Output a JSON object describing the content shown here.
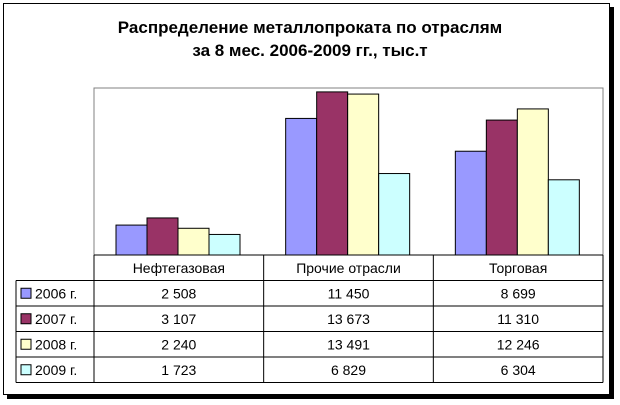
{
  "chart_data": {
    "type": "bar",
    "title_lines": [
      "Распределение металлопроката по отраслям",
      "за 8 мес. 2006-2009 гг., тыс.т"
    ],
    "categories": [
      "Нефтегазовая",
      "Прочие отрасли",
      "Торговая"
    ],
    "series": [
      {
        "name": "2006 г.",
        "color": "#9999FF",
        "values": [
          2508,
          11450,
          8699
        ],
        "labels": [
          "2 508",
          "11 450",
          "8 699"
        ]
      },
      {
        "name": "2007 г.",
        "color": "#993366",
        "values": [
          3107,
          13673,
          11310
        ],
        "labels": [
          "3 107",
          "13 673",
          "11 310"
        ]
      },
      {
        "name": "2008 г.",
        "color": "#FFFFCC",
        "values": [
          2240,
          13491,
          12246
        ],
        "labels": [
          "2 240",
          "13 491",
          "12 246"
        ]
      },
      {
        "name": "2009 г.",
        "color": "#CCFFFF",
        "values": [
          1723,
          6829,
          6304
        ],
        "labels": [
          "1 723",
          "6 829",
          "6 304"
        ]
      }
    ],
    "ylim": [
      0,
      14000
    ],
    "legend": "data-table",
    "grid": false
  }
}
